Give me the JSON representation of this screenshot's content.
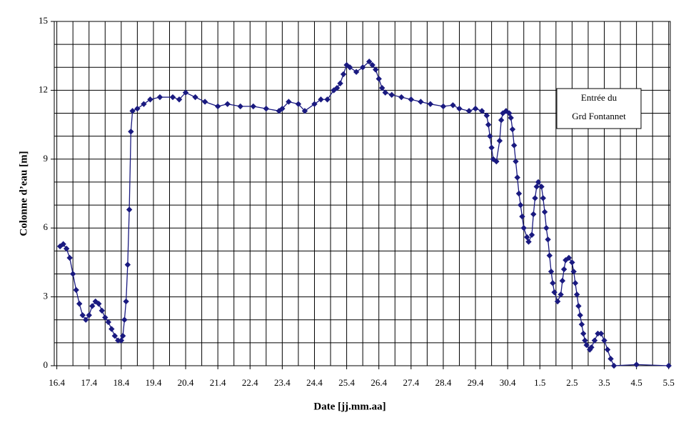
{
  "chart_data": {
    "type": "line",
    "xlabel": "Date [jj.mm.aa]",
    "ylabel": "Colonne d’eau [m]",
    "annotation": [
      "Entrée du",
      "Grd Fontannet"
    ],
    "color": "#1a1a80",
    "markers": "diamond",
    "grid": true,
    "xlim": [
      -0.08,
      19.05
    ],
    "ylim": [
      0,
      15
    ],
    "xticks": [
      {
        "value": 0,
        "label": "16.4"
      },
      {
        "value": 1,
        "label": "17.4"
      },
      {
        "value": 2,
        "label": "18.4"
      },
      {
        "value": 3,
        "label": "19.4"
      },
      {
        "value": 4,
        "label": "20.4"
      },
      {
        "value": 5,
        "label": "21.4"
      },
      {
        "value": 6,
        "label": "22.4"
      },
      {
        "value": 7,
        "label": "23.4"
      },
      {
        "value": 8,
        "label": "24.4"
      },
      {
        "value": 9,
        "label": "25.4"
      },
      {
        "value": 10,
        "label": "26.4"
      },
      {
        "value": 11,
        "label": "27.4"
      },
      {
        "value": 12,
        "label": "28.4"
      },
      {
        "value": 13,
        "label": "29.4"
      },
      {
        "value": 14,
        "label": "30.4"
      },
      {
        "value": 15,
        "label": "1.5"
      },
      {
        "value": 16,
        "label": "2.5"
      },
      {
        "value": 17,
        "label": "3.5"
      },
      {
        "value": 18,
        "label": "4.5"
      },
      {
        "value": 19,
        "label": "5.5"
      }
    ],
    "yticks": [
      0,
      3,
      6,
      9,
      12,
      15
    ],
    "minor_xticks": [
      0.5,
      1.5,
      2.5,
      3.5,
      4.5,
      5.5,
      6.5,
      7.5,
      8.5,
      9.5,
      10.5,
      11.5,
      12.5,
      13.5,
      14.5,
      15.5,
      16.5,
      17.5,
      18.5
    ],
    "minor_yticks": [
      1,
      2,
      4,
      5,
      7,
      8,
      10,
      11,
      13,
      14
    ],
    "x": [
      0.1,
      0.2,
      0.3,
      0.4,
      0.5,
      0.6,
      0.7,
      0.8,
      0.9,
      1.0,
      1.1,
      1.2,
      1.3,
      1.4,
      1.5,
      1.6,
      1.7,
      1.8,
      1.9,
      2.0,
      2.05,
      2.1,
      2.15,
      2.2,
      2.25,
      2.3,
      2.35,
      2.5,
      2.7,
      2.9,
      3.2,
      3.6,
      3.8,
      4.0,
      4.3,
      4.6,
      5.0,
      5.3,
      5.7,
      6.1,
      6.5,
      6.9,
      7.0,
      7.2,
      7.5,
      7.7,
      8.0,
      8.2,
      8.4,
      8.6,
      8.7,
      8.8,
      8.9,
      9.0,
      9.1,
      9.3,
      9.5,
      9.7,
      9.8,
      9.9,
      10.0,
      10.1,
      10.2,
      10.4,
      10.7,
      11.0,
      11.3,
      11.6,
      12.0,
      12.3,
      12.5,
      12.8,
      13.0,
      13.2,
      13.35,
      13.4,
      13.45,
      13.5,
      13.55,
      13.65,
      13.75,
      13.8,
      13.85,
      13.95,
      14.05,
      14.1,
      14.15,
      14.2,
      14.25,
      14.3,
      14.35,
      14.4,
      14.45,
      14.5,
      14.6,
      14.65,
      14.75,
      14.8,
      14.85,
      14.9,
      14.95,
      15.05,
      15.1,
      15.15,
      15.2,
      15.25,
      15.3,
      15.35,
      15.4,
      15.45,
      15.55,
      15.65,
      15.7,
      15.75,
      15.8,
      15.9,
      16.0,
      16.05,
      16.1,
      16.15,
      16.2,
      16.25,
      16.3,
      16.35,
      16.4,
      16.45,
      16.55,
      16.6,
      16.7,
      16.8,
      16.9,
      17.0,
      17.1,
      17.2,
      17.3,
      18.0,
      19.0
    ],
    "values": [
      5.2,
      5.3,
      5.1,
      4.7,
      4.0,
      3.3,
      2.7,
      2.2,
      2.0,
      2.2,
      2.6,
      2.8,
      2.7,
      2.4,
      2.1,
      1.9,
      1.6,
      1.3,
      1.1,
      1.1,
      1.3,
      2.0,
      2.8,
      4.4,
      6.8,
      10.2,
      11.1,
      11.2,
      11.4,
      11.6,
      11.7,
      11.7,
      11.6,
      11.9,
      11.7,
      11.5,
      11.3,
      11.4,
      11.3,
      11.3,
      11.2,
      11.1,
      11.2,
      11.5,
      11.4,
      11.1,
      11.4,
      11.6,
      11.6,
      12.0,
      12.1,
      12.3,
      12.7,
      13.1,
      13.0,
      12.8,
      13.0,
      13.25,
      13.1,
      12.9,
      12.5,
      12.1,
      11.9,
      11.8,
      11.7,
      11.6,
      11.5,
      11.4,
      11.3,
      11.35,
      11.2,
      11.1,
      11.2,
      11.1,
      10.9,
      10.5,
      10.0,
      9.5,
      9.0,
      8.9,
      9.8,
      10.7,
      11.0,
      11.1,
      11.0,
      10.8,
      10.3,
      9.6,
      8.9,
      8.2,
      7.5,
      7.0,
      6.5,
      6.0,
      5.6,
      5.4,
      5.7,
      6.6,
      7.3,
      7.8,
      8.0,
      7.8,
      7.3,
      6.7,
      6.0,
      5.5,
      4.8,
      4.1,
      3.6,
      3.2,
      2.8,
      3.1,
      3.7,
      4.2,
      4.6,
      4.7,
      4.5,
      4.1,
      3.6,
      3.1,
      2.6,
      2.2,
      1.8,
      1.4,
      1.1,
      0.9,
      0.7,
      0.8,
      1.1,
      1.4,
      1.4,
      1.1,
      0.7,
      0.3,
      0,
      0.05,
      0
    ]
  }
}
